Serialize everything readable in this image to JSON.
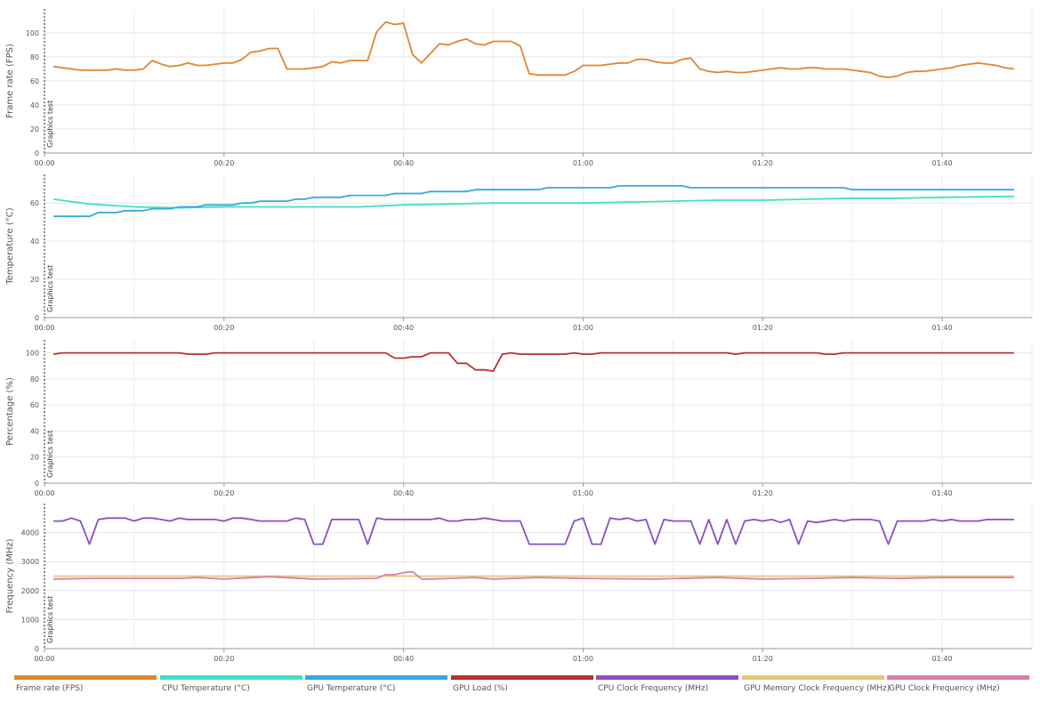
{
  "chart_data": [
    {
      "type": "line",
      "ylabel": "Frame rate (FPS)",
      "ylim": [
        0,
        120
      ],
      "yticks": [
        0,
        20,
        40,
        60,
        80,
        100
      ],
      "xlim": [
        0,
        110
      ],
      "xticks": [
        "00:00",
        "00:20",
        "00:40",
        "01:00",
        "01:20",
        "01:40"
      ],
      "marker_label": "Graphics test",
      "grid": true,
      "series": [
        {
          "name": "Frame rate (FPS)",
          "color": "#E0862F",
          "x": [
            1,
            2,
            3,
            4,
            5,
            6,
            7,
            8,
            9,
            10,
            11,
            12,
            13,
            14,
            15,
            16,
            17,
            18,
            19,
            20,
            21,
            22,
            23,
            24,
            25,
            26,
            27,
            28,
            29,
            30,
            31,
            32,
            33,
            34,
            35,
            36,
            37,
            38,
            39,
            40,
            41,
            42,
            43,
            44,
            45,
            46,
            47,
            48,
            49,
            50,
            51,
            52,
            53,
            54,
            55,
            56,
            57,
            58,
            59,
            60,
            61,
            62,
            63,
            64,
            65,
            66,
            67,
            68,
            69,
            70,
            71,
            72,
            73,
            74,
            75,
            76,
            77,
            78,
            79,
            80,
            81,
            82,
            83,
            84,
            85,
            86,
            87,
            88,
            89,
            90,
            91,
            92,
            93,
            94,
            95,
            96,
            97,
            98,
            99,
            100,
            101,
            102,
            103,
            104,
            105,
            106,
            107,
            108
          ],
          "values": [
            72,
            71,
            70,
            69,
            69,
            69,
            69,
            70,
            69,
            69,
            70,
            77,
            74,
            72,
            73,
            75,
            73,
            73,
            74,
            75,
            75,
            78,
            84,
            85,
            87,
            87,
            70,
            70,
            70,
            71,
            72,
            76,
            75,
            77,
            77,
            77,
            101,
            109,
            107,
            108,
            82,
            75,
            83,
            91,
            90,
            93,
            95,
            91,
            90,
            93,
            93,
            93,
            89,
            66,
            65,
            65,
            65,
            65,
            68,
            73,
            73,
            73,
            74,
            75,
            75,
            78,
            78,
            76,
            75,
            75,
            78,
            79,
            70,
            68,
            67,
            68,
            67,
            67,
            68,
            69,
            70,
            71,
            70,
            70,
            71,
            71,
            70,
            70,
            70,
            69,
            68,
            67,
            64,
            63,
            64,
            67,
            68,
            68,
            69,
            70,
            71,
            73,
            74,
            75,
            74,
            73,
            71,
            70
          ]
        }
      ]
    },
    {
      "type": "line",
      "ylabel": "Temperature (°C)",
      "ylim": [
        0,
        75
      ],
      "yticks": [
        0,
        20,
        40,
        60
      ],
      "xlim": [
        0,
        110
      ],
      "xticks": [
        "00:00",
        "00:20",
        "00:40",
        "01:00",
        "01:20",
        "01:40"
      ],
      "marker_label": "Graphics test",
      "grid": true,
      "series": [
        {
          "name": "CPU Temperature (°C)",
          "color": "#3FE0C5",
          "x": [
            1,
            5,
            10,
            15,
            20,
            25,
            30,
            35,
            40,
            45,
            50,
            55,
            60,
            65,
            70,
            75,
            80,
            85,
            90,
            95,
            100,
            108
          ],
          "values": [
            62,
            59.5,
            58,
            57.5,
            58,
            58,
            58,
            58,
            59,
            59.5,
            60,
            60,
            60,
            60.5,
            61,
            61.5,
            61.5,
            62,
            62.5,
            62.5,
            63,
            63.5
          ]
        },
        {
          "name": "GPU Temperature (°C)",
          "color": "#35A9E0",
          "x": [
            1,
            5,
            6,
            8,
            9,
            11,
            12,
            14,
            15,
            17,
            18,
            21,
            22,
            23,
            24,
            27,
            28,
            29,
            30,
            33,
            34,
            38,
            39,
            42,
            43,
            47,
            48,
            55,
            56,
            63,
            64,
            71,
            72,
            89,
            90,
            108
          ],
          "values": [
            53,
            53,
            55,
            55,
            56,
            56,
            57,
            57,
            58,
            58,
            59,
            59,
            60,
            60,
            61,
            61,
            62,
            62,
            63,
            63,
            64,
            64,
            65,
            65,
            66,
            66,
            67,
            67,
            68,
            68,
            69,
            69,
            68,
            68,
            67,
            67
          ]
        }
      ]
    },
    {
      "type": "line",
      "ylabel": "Percentage (%)",
      "ylim": [
        0,
        110
      ],
      "yticks": [
        0,
        20,
        40,
        60,
        80,
        100
      ],
      "xlim": [
        0,
        110
      ],
      "xticks": [
        "00:00",
        "00:20",
        "00:40",
        "01:00",
        "01:20",
        "01:40"
      ],
      "marker_label": "Graphics test",
      "grid": true,
      "series": [
        {
          "name": "GPU Load (%)",
          "color": "#B83232",
          "x": [
            1,
            2,
            15,
            16,
            18,
            19,
            38,
            39,
            40,
            41,
            42,
            43,
            45,
            46,
            47,
            48,
            49,
            50,
            51,
            52,
            53,
            54,
            58,
            59,
            60,
            61,
            62,
            63,
            76,
            77,
            78,
            86,
            87,
            88,
            89,
            108
          ],
          "values": [
            99,
            100,
            100,
            99,
            99,
            100,
            100,
            96,
            96,
            97,
            97,
            100,
            100,
            92,
            92,
            87,
            87,
            86,
            99,
            100,
            99,
            99,
            99,
            100,
            99,
            99,
            100,
            100,
            100,
            99,
            100,
            100,
            99,
            99,
            100,
            100
          ]
        }
      ]
    },
    {
      "type": "line",
      "ylabel": "Frequency (MHz)",
      "ylim": [
        0,
        5000
      ],
      "yticks": [
        0,
        1000,
        2000,
        3000,
        4000
      ],
      "xlim": [
        0,
        110
      ],
      "xticks": [
        "00:00",
        "00:20",
        "00:40",
        "01:00",
        "01:20",
        "01:40"
      ],
      "marker_label": "Graphics test",
      "grid": true,
      "series": [
        {
          "name": "CPU Clock Frequency (MHz)",
          "color": "#8B4FBF",
          "x": [
            1,
            2,
            3,
            4,
            5,
            6,
            7,
            8,
            9,
            10,
            11,
            12,
            13,
            14,
            15,
            16,
            17,
            18,
            19,
            20,
            21,
            22,
            23,
            24,
            25,
            26,
            27,
            28,
            29,
            30,
            31,
            32,
            33,
            34,
            35,
            36,
            37,
            38,
            39,
            40,
            41,
            42,
            43,
            44,
            45,
            46,
            47,
            48,
            49,
            50,
            51,
            52,
            53,
            54,
            55,
            56,
            57,
            58,
            59,
            60,
            61,
            62,
            63,
            64,
            65,
            66,
            67,
            68,
            69,
            70,
            71,
            72,
            73,
            74,
            75,
            76,
            77,
            78,
            79,
            80,
            81,
            82,
            83,
            84,
            85,
            86,
            87,
            88,
            89,
            90,
            91,
            92,
            93,
            94,
            95,
            96,
            97,
            98,
            99,
            100,
            101,
            102,
            103,
            104,
            105,
            106,
            107,
            108
          ],
          "values": [
            4400,
            4400,
            4500,
            4400,
            3600,
            4450,
            4500,
            4500,
            4500,
            4400,
            4500,
            4500,
            4450,
            4400,
            4500,
            4450,
            4450,
            4450,
            4450,
            4400,
            4500,
            4500,
            4450,
            4400,
            4400,
            4400,
            4400,
            4500,
            4450,
            3600,
            3600,
            4450,
            4450,
            4450,
            4450,
            3600,
            4500,
            4450,
            4450,
            4450,
            4450,
            4450,
            4450,
            4500,
            4400,
            4400,
            4450,
            4450,
            4500,
            4450,
            4400,
            4400,
            4400,
            3600,
            3600,
            3600,
            3600,
            3600,
            4400,
            4500,
            3600,
            3600,
            4500,
            4450,
            4500,
            4400,
            4450,
            3600,
            4450,
            4400,
            4400,
            4400,
            3600,
            4450,
            3600,
            4450,
            3600,
            4400,
            4450,
            4400,
            4450,
            4350,
            4450,
            3600,
            4400,
            4350,
            4400,
            4450,
            4400,
            4450,
            4450,
            4450,
            4400,
            3600,
            4400,
            4400,
            4400,
            4400,
            4450,
            4400,
            4450,
            4400,
            4400,
            4400,
            4450,
            4450,
            4450,
            4450
          ]
        },
        {
          "name": "GPU Memory Clock Frequency (MHz)",
          "color": "#E3C77E",
          "x": [
            1,
            108
          ],
          "values": [
            2500,
            2500
          ]
        },
        {
          "name": "GPU Clock Frequency (MHz)",
          "color": "#D77FA8",
          "x": [
            1,
            5,
            10,
            15,
            17,
            20,
            25,
            30,
            37,
            38,
            39,
            40,
            41,
            42,
            43,
            45,
            48,
            50,
            55,
            60,
            68,
            75,
            80,
            85,
            90,
            95,
            100,
            108
          ],
          "values": [
            2400,
            2420,
            2420,
            2420,
            2450,
            2400,
            2480,
            2400,
            2420,
            2550,
            2550,
            2620,
            2650,
            2400,
            2400,
            2420,
            2450,
            2400,
            2450,
            2420,
            2400,
            2450,
            2400,
            2420,
            2450,
            2420,
            2450,
            2450
          ]
        }
      ]
    }
  ],
  "legend": [
    {
      "label": "Frame rate (FPS)",
      "color": "#E0862F"
    },
    {
      "label": "CPU Temperature (°C)",
      "color": "#3FE0C5"
    },
    {
      "label": "GPU Temperature (°C)",
      "color": "#35A9E0"
    },
    {
      "label": "GPU Load (%)",
      "color": "#B83232"
    },
    {
      "label": "CPU Clock Frequency (MHz)",
      "color": "#8B4FBF"
    },
    {
      "label": "GPU Memory Clock Frequency (MHz)",
      "color": "#E3C77E"
    },
    {
      "label": "GPU Clock Frequency (MHz)",
      "color": "#D77FA8"
    }
  ]
}
